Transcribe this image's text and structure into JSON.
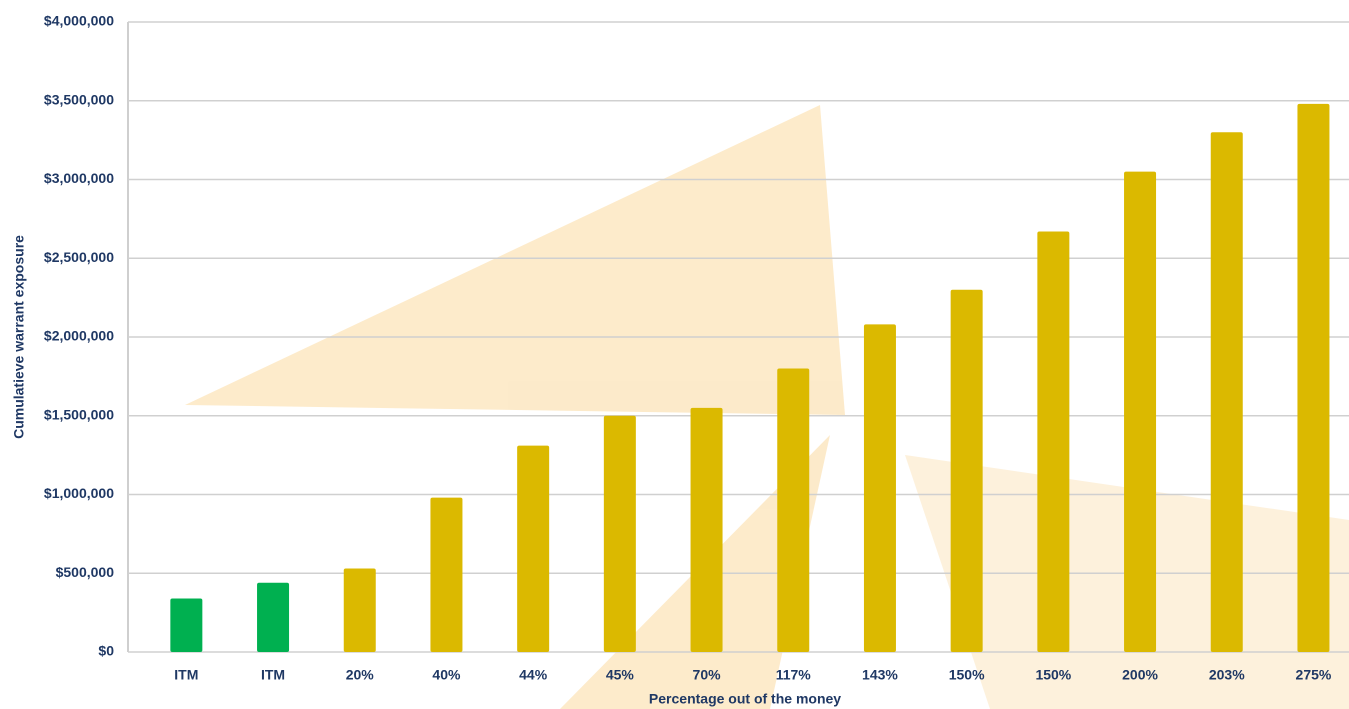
{
  "chart_data": {
    "type": "bar",
    "x_label": "Percentage out of the money",
    "y_label": "Cumulatieve warrant exposure",
    "categories": [
      "ITM",
      "ITM",
      "20%",
      "40%",
      "44%",
      "45%",
      "70%",
      "117%",
      "143%",
      "150%",
      "150%",
      "200%",
      "203%",
      "275%"
    ],
    "values": [
      340000,
      440000,
      530000,
      980000,
      1310000,
      1500000,
      1550000,
      1800000,
      2080000,
      2300000,
      2670000,
      3050000,
      3300000,
      3480000
    ],
    "colors": [
      "#00b050",
      "#00b050",
      "#dbb900",
      "#dbb900",
      "#dbb900",
      "#dbb900",
      "#dbb900",
      "#dbb900",
      "#dbb900",
      "#dbb900",
      "#dbb900",
      "#dbb900",
      "#dbb900",
      "#dbb900"
    ],
    "ylim": [
      0,
      4000000
    ],
    "yticks": [
      {
        "value": 0,
        "label": "$0"
      },
      {
        "value": 500000,
        "label": "$500,000"
      },
      {
        "value": 1000000,
        "label": "$1,000,000"
      },
      {
        "value": 1500000,
        "label": "$1,500,000"
      },
      {
        "value": 2000000,
        "label": "$2,000,000"
      },
      {
        "value": 2500000,
        "label": "$2,500,000"
      },
      {
        "value": 3000000,
        "label": "$3,000,000"
      },
      {
        "value": 3500000,
        "label": "$3,500,000"
      },
      {
        "value": 4000000,
        "label": "$4,000,000"
      }
    ],
    "grid": true
  }
}
